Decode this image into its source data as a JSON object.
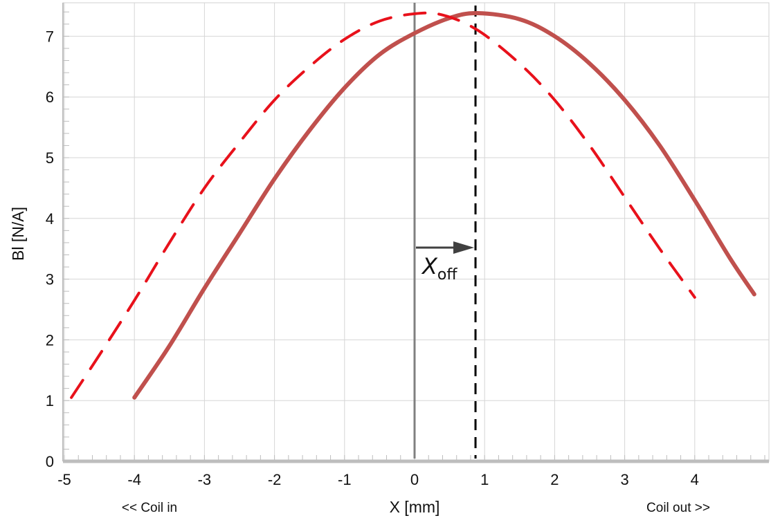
{
  "chart_data": {
    "type": "line",
    "xlabel": "X [mm]",
    "ylabel": "Bl [N/A]",
    "xlim": [
      -5.0,
      5.1
    ],
    "ylim": [
      0,
      7.5
    ],
    "x_ticks": [
      "-5",
      "-4",
      "-3",
      "-2",
      "-1",
      "0",
      "1",
      "2",
      "3",
      "4"
    ],
    "y_ticks": [
      "0",
      "1",
      "2",
      "3",
      "4",
      "5",
      "6",
      "7"
    ],
    "grid": true,
    "series": [
      {
        "style": "solid",
        "color": "#c0504d",
        "x": [
          -4.0,
          -3.5,
          -3.0,
          -2.5,
          -2.0,
          -1.5,
          -1.0,
          -0.5,
          0.0,
          0.5,
          0.9,
          1.5,
          2.0,
          2.5,
          3.0,
          3.5,
          4.0,
          4.5,
          4.85
        ],
        "y": [
          1.05,
          1.9,
          2.85,
          3.75,
          4.65,
          5.45,
          6.15,
          6.7,
          7.05,
          7.3,
          7.38,
          7.28,
          7.0,
          6.55,
          5.95,
          5.2,
          4.3,
          3.35,
          2.75
        ]
      },
      {
        "style": "dashed",
        "color": "#e8111b",
        "x": [
          -4.9,
          -4.5,
          -4.0,
          -3.5,
          -3.0,
          -2.5,
          -2.0,
          -1.5,
          -1.0,
          -0.5,
          0.0,
          0.4,
          0.9,
          1.5,
          2.0,
          2.5,
          3.0,
          3.5,
          4.0
        ],
        "y": [
          1.05,
          1.75,
          2.65,
          3.6,
          4.5,
          5.25,
          5.95,
          6.5,
          6.95,
          7.25,
          7.37,
          7.35,
          7.1,
          6.55,
          5.95,
          5.2,
          4.35,
          3.5,
          2.7
        ]
      }
    ],
    "reference_lines": [
      {
        "x": 0.0,
        "style": "solid",
        "color": "#808080"
      },
      {
        "x": 0.87,
        "style": "dashed",
        "color": "#000000"
      }
    ],
    "annotations": [
      {
        "type": "arrow",
        "from": [
          0.0,
          3.5
        ],
        "to": [
          0.87,
          3.5
        ],
        "label_main": "X",
        "label_sub": "off"
      },
      {
        "type": "text",
        "text": "<< Coil in",
        "position": "bottom-left"
      },
      {
        "type": "text",
        "text": "Coil out >>",
        "position": "bottom-right"
      }
    ]
  }
}
